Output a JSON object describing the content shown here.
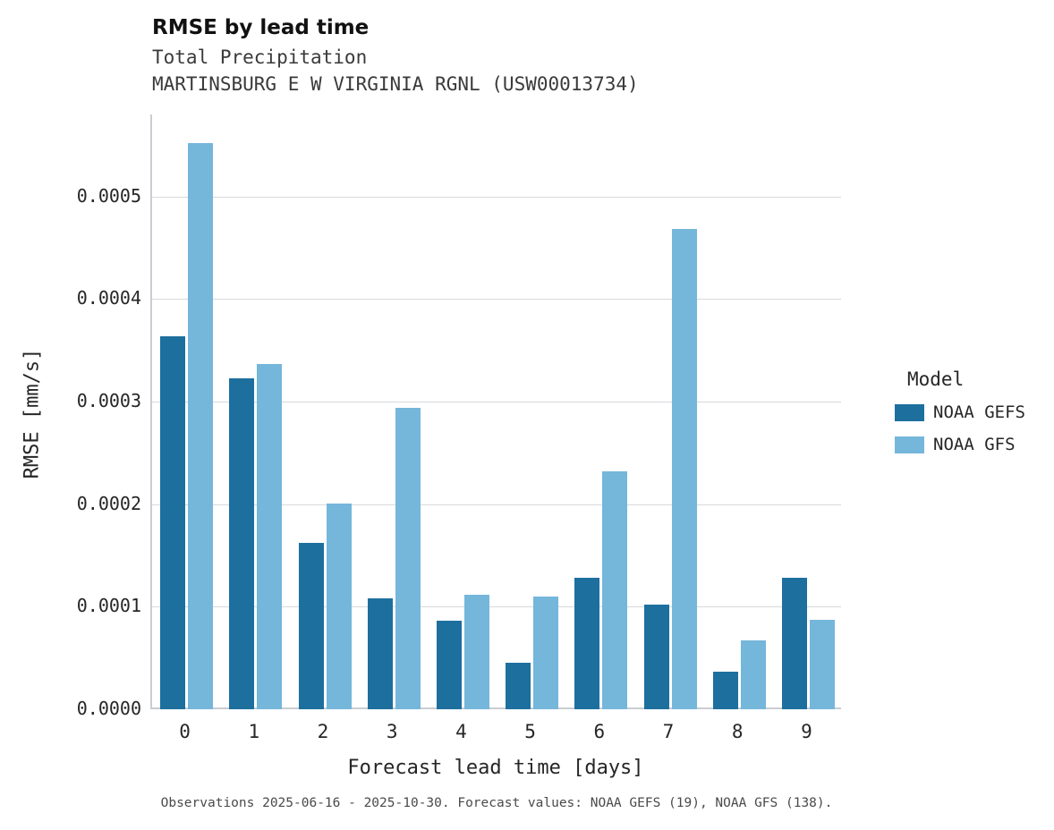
{
  "chart_data": {
    "type": "bar",
    "title": "RMSE by lead time",
    "subtitle_line1": "Total Precipitation",
    "subtitle_line2": "MARTINSBURG E W VIRGINIA RGNL (USW00013734)",
    "xlabel": "Forecast lead time [days]",
    "ylabel": "RMSE [mm/s]",
    "categories": [
      "0",
      "1",
      "2",
      "3",
      "4",
      "5",
      "6",
      "7",
      "8",
      "9"
    ],
    "series": [
      {
        "name": "NOAA GEFS",
        "color": "#1d6f9e",
        "values": [
          0.000364,
          0.000323,
          0.000162,
          0.000108,
          8.6e-05,
          4.5e-05,
          0.000128,
          0.000102,
          3.7e-05,
          0.000128
        ]
      },
      {
        "name": "NOAA GFS",
        "color": "#75b6db",
        "values": [
          0.000552,
          0.000337,
          0.000201,
          0.000294,
          0.000112,
          0.00011,
          0.000232,
          0.000468,
          6.7e-05,
          8.7e-05
        ]
      }
    ],
    "ylim": [
      0,
      0.00058
    ],
    "ytick_labels": [
      "0.0000",
      "0.0001",
      "0.0002",
      "0.0003",
      "0.0004",
      "0.0005"
    ],
    "ytick_values": [
      0,
      0.0001,
      0.0002,
      0.0003,
      0.0004,
      0.0005
    ],
    "grid": "horizontal",
    "legend_title": "Model",
    "legend_position": "right",
    "caption": "Observations 2025-06-16 - 2025-10-30. Forecast values: NOAA GEFS (19), NOAA GFS (138)."
  }
}
